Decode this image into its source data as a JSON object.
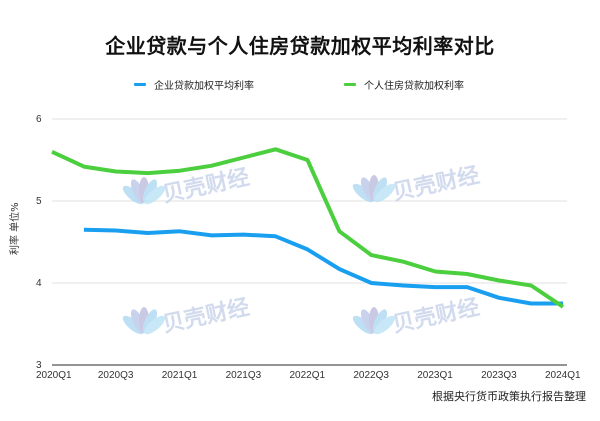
{
  "title": "企业贷款与个人住房贷款加权平均利率对比",
  "legend": [
    {
      "label": "企业贷款加权平均利率",
      "color": "#1a9ff0"
    },
    {
      "label": "个人住房贷款加权利率",
      "color": "#4ccf3e"
    }
  ],
  "ylabel": "利率 单位%",
  "source": "根据央行货币政策执行报告整理",
  "watermark": "贝壳财经",
  "chart_data": {
    "type": "line",
    "title": "企业贷款与个人住房贷款加权平均利率对比",
    "xlabel": "",
    "ylabel": "利率 单位%",
    "ylim": [
      3,
      6
    ],
    "yticks": [
      3,
      4,
      5,
      6
    ],
    "grid": true,
    "legend_position": "top",
    "x": [
      "2020Q1",
      "2020Q2",
      "2020Q3",
      "2020Q4",
      "2021Q1",
      "2021Q2",
      "2021Q3",
      "2021Q4",
      "2022Q1",
      "2022Q2",
      "2022Q3",
      "2022Q4",
      "2023Q1",
      "2023Q2",
      "2023Q3",
      "2023Q4",
      "2024Q1"
    ],
    "xtick_labels": [
      "2020Q1",
      "2020Q3",
      "2021Q1",
      "2021Q3",
      "2022Q1",
      "2022Q3",
      "2023Q1",
      "2023Q3",
      "2024Q1"
    ],
    "series": [
      {
        "name": "企业贷款加权平均利率",
        "color": "#1a9ff0",
        "values": [
          null,
          4.65,
          4.64,
          4.61,
          4.63,
          4.58,
          4.59,
          4.57,
          4.41,
          4.17,
          4.0,
          3.97,
          3.95,
          3.95,
          3.82,
          3.75,
          3.75
        ]
      },
      {
        "name": "个人住房贷款加权利率",
        "color": "#4ccf3e",
        "values": [
          5.6,
          5.42,
          5.36,
          5.34,
          5.37,
          5.43,
          5.53,
          5.63,
          5.5,
          4.63,
          4.34,
          4.26,
          4.14,
          4.11,
          4.03,
          3.97,
          3.71
        ]
      }
    ]
  }
}
